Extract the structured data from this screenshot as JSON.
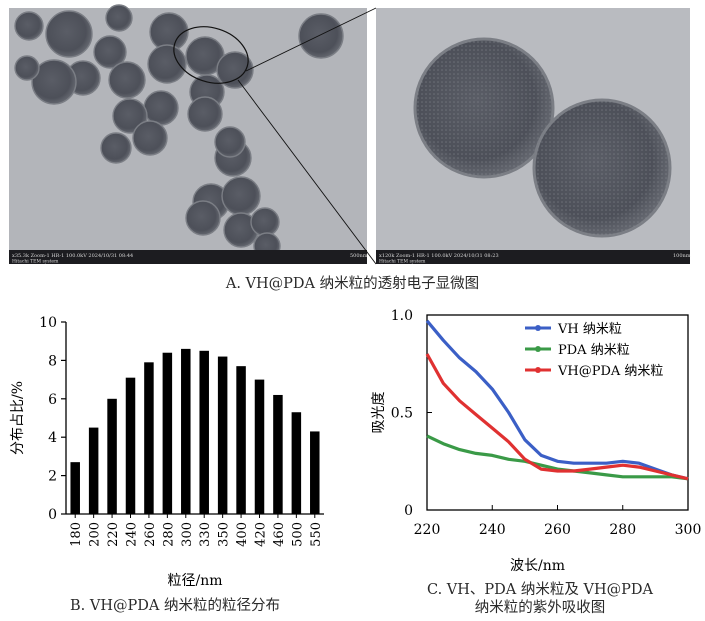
{
  "panel_a": {
    "caption": "A. VH@PDA 纳米粒的透射电子显微图",
    "left_image": {
      "info_bar": "x35.3k Zoom-1 HR-1 100.0kV 2024/10/31 08:44",
      "info_bar_right": "500nm",
      "info_bar_sub": "Hitachi TEM system"
    },
    "right_image": {
      "info_bar": "x120k Zoom-1 HR-1 100.0kV 2024/10/31 08:23",
      "info_bar_right": "100nm",
      "info_bar_sub": "Hitachi TEM system"
    }
  },
  "panel_b": {
    "caption": "B. VH@PDA 纳米粒的粒径分布"
  },
  "panel_c": {
    "caption_line1": "C. VH、PDA 纳米粒及 VH@PDA",
    "caption_line2": "纳米粒的紫外吸收图"
  },
  "chart_data": [
    {
      "type": "bar",
      "xlabel": "粒径/nm",
      "ylabel": "分布占比/%",
      "ylim": [
        0,
        10
      ],
      "yticks": [
        "0",
        "2",
        "4",
        "6",
        "8",
        "10"
      ],
      "categories": [
        "180",
        "200",
        "220",
        "240",
        "260",
        "280",
        "300",
        "330",
        "350",
        "400",
        "420",
        "460",
        "500",
        "550"
      ],
      "values": [
        2.7,
        4.5,
        6.0,
        7.1,
        7.9,
        8.4,
        8.6,
        8.5,
        8.2,
        7.7,
        7.0,
        6.2,
        5.3,
        4.3
      ],
      "bar_color": "#000000",
      "grid": false
    },
    {
      "type": "line",
      "xlabel": "波长/nm",
      "ylabel": "吸光度",
      "xlim": [
        220,
        300
      ],
      "ylim": [
        0,
        1.0
      ],
      "xticks": [
        "220",
        "240",
        "260",
        "280",
        "300"
      ],
      "yticks": [
        "0",
        "0.5",
        "1.0"
      ],
      "legend_position": "top-right",
      "grid": false,
      "x": [
        220,
        225,
        230,
        235,
        240,
        245,
        250,
        255,
        260,
        265,
        270,
        275,
        280,
        285,
        290,
        295,
        300
      ],
      "series": [
        {
          "name": "VH 纳米粒",
          "color": "#3b5fc6",
          "values": [
            0.97,
            0.87,
            0.78,
            0.71,
            0.62,
            0.5,
            0.36,
            0.28,
            0.25,
            0.24,
            0.24,
            0.24,
            0.25,
            0.24,
            0.21,
            0.18,
            0.16
          ]
        },
        {
          "name": "PDA 纳米粒",
          "color": "#3a9a47",
          "values": [
            0.38,
            0.34,
            0.31,
            0.29,
            0.28,
            0.26,
            0.25,
            0.23,
            0.21,
            0.2,
            0.19,
            0.18,
            0.17,
            0.17,
            0.17,
            0.17,
            0.16
          ]
        },
        {
          "name": "VH@PDA 纳米粒",
          "color": "#e03131",
          "values": [
            0.8,
            0.65,
            0.56,
            0.49,
            0.42,
            0.35,
            0.26,
            0.21,
            0.2,
            0.2,
            0.21,
            0.22,
            0.23,
            0.22,
            0.2,
            0.18,
            0.16
          ]
        }
      ]
    }
  ]
}
